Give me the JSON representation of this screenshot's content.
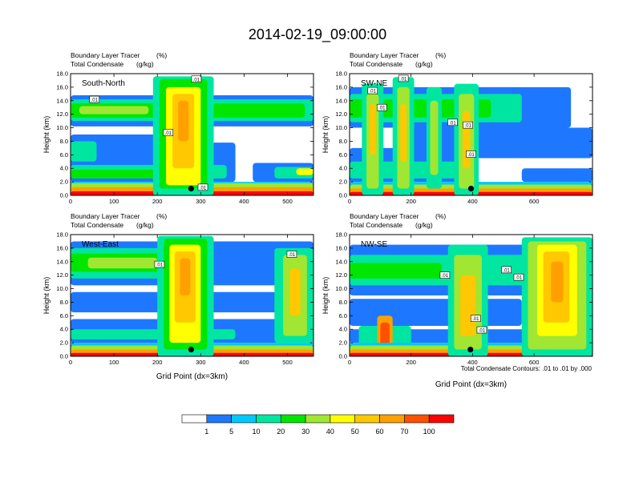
{
  "page": {
    "title": "2014-02-19_09:00:00",
    "footnote": "Total Condensate Contours: .01 to .01 by .000"
  },
  "colorbar": {
    "colors": [
      "#ffffff",
      "#1e78ff",
      "#00c8ff",
      "#00e6a0",
      "#00e600",
      "#a0e632",
      "#ffff00",
      "#ffc800",
      "#ffa000",
      "#ff5000",
      "#ff0000"
    ],
    "labels": [
      "1",
      "5",
      "10",
      "20",
      "30",
      "40",
      "50",
      "60",
      "70",
      "100"
    ]
  },
  "chart_data": [
    {
      "type": "heatmap",
      "panel_label": "South-North",
      "line1_left": "Boundary Layer Tracer",
      "line1_right": "(%)",
      "line2_left": "Total Condensate",
      "line2_right": "(g/kg)",
      "ylabel": "Height (km)",
      "xlabel": "",
      "xlim": [
        0,
        560
      ],
      "ylim": [
        0,
        18
      ],
      "xticks": [
        "0",
        "100",
        "200",
        "300",
        "400",
        "500"
      ],
      "xtick_values": [
        0,
        100,
        200,
        300,
        400,
        500
      ],
      "yticks": [
        "0.0",
        "2.0",
        "4.0",
        "6.0",
        "8.0",
        "10.0",
        "12.0",
        "14.0",
        "16.0",
        "18.0"
      ],
      "ytick_values": [
        0,
        2,
        4,
        6,
        8,
        10,
        12,
        14,
        16,
        18
      ],
      "marker": [
        278,
        1.0
      ],
      "contour_labels": [
        {
          "text": ".01",
          "x": 55,
          "y": 14.2
        },
        {
          "text": ".01",
          "x": 225,
          "y": 9.3
        },
        {
          "text": ".01",
          "x": 305,
          "y": 1.2
        },
        {
          "text": ".01",
          "x": 290,
          "y": 17.2
        }
      ],
      "layers": [
        {
          "level": 1,
          "x": [
            0,
            560
          ],
          "y": [
            10.2,
            14.8
          ]
        },
        {
          "level": 3,
          "x": [
            0,
            560
          ],
          "y": [
            11.0,
            14.2
          ]
        },
        {
          "level": 4,
          "x": [
            0,
            540
          ],
          "y": [
            11.5,
            13.6
          ]
        },
        {
          "level": 5,
          "x": [
            20,
            180
          ],
          "y": [
            12.0,
            13.2
          ]
        },
        {
          "level": 1,
          "x": [
            0,
            380
          ],
          "y": [
            2.0,
            7.8
          ]
        },
        {
          "level": 3,
          "x": [
            0,
            360
          ],
          "y": [
            2.5,
            4.5
          ]
        },
        {
          "level": 4,
          "x": [
            0,
            240
          ],
          "y": [
            2.5,
            3.8
          ]
        },
        {
          "level": 1,
          "x": [
            420,
            560
          ],
          "y": [
            2.0,
            4.8
          ]
        },
        {
          "level": 3,
          "x": [
            470,
            560
          ],
          "y": [
            2.5,
            4.2
          ]
        },
        {
          "level": 6,
          "x": [
            520,
            560
          ],
          "y": [
            3.0,
            4.0
          ]
        },
        {
          "level": 1,
          "x": [
            0,
            220
          ],
          "y": [
            4.5,
            9.0
          ]
        },
        {
          "level": 3,
          "x": [
            0,
            60
          ],
          "y": [
            5.0,
            8.0
          ]
        },
        {
          "level": 2,
          "x": [
            0,
            560
          ],
          "y": [
            0.0,
            2.0
          ]
        },
        {
          "level": 5,
          "x": [
            0,
            560
          ],
          "y": [
            0.4,
            1.8
          ]
        },
        {
          "level": 8,
          "x": [
            0,
            560
          ],
          "y": [
            0.0,
            1.2
          ]
        },
        {
          "level": 10,
          "x": [
            0,
            560
          ],
          "y": [
            0.0,
            0.6
          ]
        },
        {
          "level": 3,
          "x": [
            190,
            330
          ],
          "y": [
            0.0,
            17.6
          ]
        },
        {
          "level": 4,
          "x": [
            205,
            315
          ],
          "y": [
            1.0,
            17.2
          ]
        },
        {
          "level": 6,
          "x": [
            220,
            300
          ],
          "y": [
            1.5,
            16.0
          ]
        },
        {
          "level": 7,
          "x": [
            235,
            285
          ],
          "y": [
            4.0,
            15.0
          ]
        },
        {
          "level": 8,
          "x": [
            248,
            272
          ],
          "y": [
            8.0,
            14.0
          ]
        }
      ]
    },
    {
      "type": "heatmap",
      "panel_label": "SW-NE",
      "line1_left": "Boundary Layer Tracer",
      "line1_right": "(%)",
      "line2_left": "Total Condensate",
      "line2_right": "(g/kg)",
      "ylabel": "Height (km)",
      "xlabel": "",
      "xlim": [
        0,
        790
      ],
      "ylim": [
        0,
        18
      ],
      "xticks": [
        "0",
        "200",
        "400",
        "600"
      ],
      "xtick_values": [
        0,
        200,
        400,
        600
      ],
      "yticks": [
        "0.0",
        "2.0",
        "4.0",
        "6.0",
        "8.0",
        "10.0",
        "12.0",
        "14.0",
        "16.0",
        "18.0"
      ],
      "ytick_values": [
        0,
        2,
        4,
        6,
        8,
        10,
        12,
        14,
        16,
        18
      ],
      "marker": [
        395,
        1.0
      ],
      "contour_labels": [
        {
          "text": ".01",
          "x": 75,
          "y": 15.5
        },
        {
          "text": ".01",
          "x": 105,
          "y": 13.0
        },
        {
          "text": ".01",
          "x": 335,
          "y": 10.8
        },
        {
          "text": ".01",
          "x": 385,
          "y": 10.4
        },
        {
          "text": ".01",
          "x": 395,
          "y": 6.1
        },
        {
          "text": ".01",
          "x": 175,
          "y": 17.3
        }
      ],
      "layers": [
        {
          "level": 1,
          "x": [
            0,
            720
          ],
          "y": [
            10.0,
            16.0
          ]
        },
        {
          "level": 3,
          "x": [
            0,
            560
          ],
          "y": [
            10.8,
            15.0
          ]
        },
        {
          "level": 4,
          "x": [
            0,
            460
          ],
          "y": [
            11.5,
            14.2
          ]
        },
        {
          "level": 1,
          "x": [
            200,
            790
          ],
          "y": [
            5.5,
            10.0
          ]
        },
        {
          "level": 1,
          "x": [
            0,
            400
          ],
          "y": [
            2.0,
            7.0
          ]
        },
        {
          "level": 3,
          "x": [
            0,
            380
          ],
          "y": [
            2.5,
            5.0
          ]
        },
        {
          "level": 1,
          "x": [
            560,
            790
          ],
          "y": [
            2.0,
            4.0
          ]
        },
        {
          "level": 2,
          "x": [
            0,
            790
          ],
          "y": [
            0.0,
            2.0
          ]
        },
        {
          "level": 5,
          "x": [
            0,
            790
          ],
          "y": [
            0.3,
            1.6
          ]
        },
        {
          "level": 8,
          "x": [
            0,
            790
          ],
          "y": [
            0.0,
            1.0
          ]
        },
        {
          "level": 10,
          "x": [
            0,
            790
          ],
          "y": [
            0.0,
            0.5
          ]
        },
        {
          "level": 3,
          "x": [
            40,
            110
          ],
          "y": [
            0.0,
            16.5
          ]
        },
        {
          "level": 5,
          "x": [
            55,
            95
          ],
          "y": [
            1.0,
            15.0
          ]
        },
        {
          "level": 7,
          "x": [
            65,
            85
          ],
          "y": [
            6.0,
            13.5
          ]
        },
        {
          "level": 3,
          "x": [
            140,
            210
          ],
          "y": [
            0.0,
            17.5
          ]
        },
        {
          "level": 5,
          "x": [
            155,
            195
          ],
          "y": [
            1.0,
            16.0
          ]
        },
        {
          "level": 7,
          "x": [
            165,
            185
          ],
          "y": [
            5.0,
            13.5
          ]
        },
        {
          "level": 3,
          "x": [
            250,
            300
          ],
          "y": [
            1.0,
            16.0
          ]
        },
        {
          "level": 5,
          "x": [
            262,
            288
          ],
          "y": [
            3.0,
            14.0
          ]
        },
        {
          "level": 3,
          "x": [
            340,
            420
          ],
          "y": [
            0.0,
            16.5
          ]
        },
        {
          "level": 5,
          "x": [
            355,
            405
          ],
          "y": [
            1.0,
            15.0
          ]
        },
        {
          "level": 7,
          "x": [
            368,
            392
          ],
          "y": [
            4.0,
            12.5
          ]
        }
      ]
    },
    {
      "type": "heatmap",
      "panel_label": "West-East",
      "line1_left": "Boundary Layer Tracer",
      "line1_right": "(%)",
      "line2_left": "Total Condensate",
      "line2_right": "(g/kg)",
      "ylabel": "Height (km)",
      "xlabel": "Grid Point (dx=3km)",
      "xlim": [
        0,
        560
      ],
      "ylim": [
        0,
        18
      ],
      "xticks": [
        "0",
        "100",
        "200",
        "300",
        "400",
        "500"
      ],
      "xtick_values": [
        0,
        100,
        200,
        300,
        400,
        500
      ],
      "yticks": [
        "0.0",
        "2.0",
        "4.0",
        "6.0",
        "8.0",
        "10.0",
        "12.0",
        "14.0",
        "16.0",
        "18.0"
      ],
      "ytick_values": [
        0,
        2,
        4,
        6,
        8,
        10,
        12,
        14,
        16,
        18
      ],
      "marker": [
        278,
        1.0
      ],
      "contour_labels": [
        {
          "text": ".01",
          "x": 205,
          "y": 13.6
        },
        {
          "text": ".01",
          "x": 510,
          "y": 15.1
        }
      ],
      "layers": [
        {
          "level": 1,
          "x": [
            0,
            560
          ],
          "y": [
            10.5,
            17.0
          ]
        },
        {
          "level": 3,
          "x": [
            0,
            260
          ],
          "y": [
            11.5,
            16.0
          ]
        },
        {
          "level": 4,
          "x": [
            0,
            230
          ],
          "y": [
            12.5,
            15.2
          ]
        },
        {
          "level": 5,
          "x": [
            40,
            200
          ],
          "y": [
            13.0,
            14.6
          ]
        },
        {
          "level": 1,
          "x": [
            0,
            560
          ],
          "y": [
            6.5,
            9.5
          ]
        },
        {
          "level": 1,
          "x": [
            0,
            560
          ],
          "y": [
            2.0,
            5.5
          ]
        },
        {
          "level": 3,
          "x": [
            0,
            380
          ],
          "y": [
            2.5,
            4.0
          ]
        },
        {
          "level": 2,
          "x": [
            0,
            560
          ],
          "y": [
            0.0,
            2.0
          ]
        },
        {
          "level": 5,
          "x": [
            0,
            560
          ],
          "y": [
            0.3,
            1.6
          ]
        },
        {
          "level": 8,
          "x": [
            0,
            560
          ],
          "y": [
            0.0,
            1.0
          ]
        },
        {
          "level": 10,
          "x": [
            0,
            560
          ],
          "y": [
            0.0,
            0.5
          ]
        },
        {
          "level": 3,
          "x": [
            200,
            330
          ],
          "y": [
            0.0,
            17.8
          ]
        },
        {
          "level": 4,
          "x": [
            215,
            315
          ],
          "y": [
            1.0,
            17.4
          ]
        },
        {
          "level": 6,
          "x": [
            228,
            300
          ],
          "y": [
            2.0,
            16.5
          ]
        },
        {
          "level": 7,
          "x": [
            240,
            288
          ],
          "y": [
            5.0,
            15.5
          ]
        },
        {
          "level": 8,
          "x": [
            252,
            276
          ],
          "y": [
            9.0,
            14.5
          ]
        },
        {
          "level": 3,
          "x": [
            470,
            560
          ],
          "y": [
            2.0,
            16.0
          ]
        },
        {
          "level": 5,
          "x": [
            490,
            545
          ],
          "y": [
            3.0,
            15.0
          ]
        },
        {
          "level": 7,
          "x": [
            505,
            530
          ],
          "y": [
            6.0,
            13.0
          ]
        }
      ]
    },
    {
      "type": "heatmap",
      "panel_label": "NW-SE",
      "line1_left": "Boundary Layer Tracer",
      "line1_right": "(%)",
      "line2_left": "Total Condensate",
      "line2_right": "(g/kg)",
      "ylabel": "Height (km)",
      "xlabel": "Grid Point (dx=3km)",
      "xlim": [
        0,
        790
      ],
      "ylim": [
        0,
        18
      ],
      "xticks": [
        "0",
        "200",
        "400",
        "600"
      ],
      "xtick_values": [
        0,
        200,
        400,
        600
      ],
      "yticks": [
        "0.0",
        "2.0",
        "4.0",
        "6.0",
        "8.0",
        "10.0",
        "12.0",
        "14.0",
        "16.0",
        "18.0"
      ],
      "ytick_values": [
        0,
        2,
        4,
        6,
        8,
        10,
        12,
        14,
        16,
        18
      ],
      "marker": [
        393,
        1.0
      ],
      "contour_labels": [
        {
          "text": ".01",
          "x": 310,
          "y": 12.0
        },
        {
          "text": ".01",
          "x": 510,
          "y": 12.8
        },
        {
          "text": ".01",
          "x": 550,
          "y": 11.7
        },
        {
          "text": ".01",
          "x": 410,
          "y": 5.6
        },
        {
          "text": ".01",
          "x": 430,
          "y": 3.9
        }
      ],
      "layers": [
        {
          "level": 1,
          "x": [
            0,
            790
          ],
          "y": [
            9.0,
            16.5
          ]
        },
        {
          "level": 3,
          "x": [
            0,
            790
          ],
          "y": [
            10.5,
            15.0
          ]
        },
        {
          "level": 4,
          "x": [
            0,
            300
          ],
          "y": [
            11.5,
            13.8
          ]
        },
        {
          "level": 1,
          "x": [
            0,
            560
          ],
          "y": [
            4.5,
            8.5
          ]
        },
        {
          "level": 1,
          "x": [
            0,
            790
          ],
          "y": [
            2.0,
            4.0
          ]
        },
        {
          "level": 3,
          "x": [
            30,
            200
          ],
          "y": [
            0.0,
            4.5
          ]
        },
        {
          "level": 8,
          "x": [
            90,
            140
          ],
          "y": [
            0.0,
            6.0
          ]
        },
        {
          "level": 9,
          "x": [
            100,
            130
          ],
          "y": [
            1.0,
            5.0
          ]
        },
        {
          "level": 2,
          "x": [
            0,
            790
          ],
          "y": [
            0.0,
            2.0
          ]
        },
        {
          "level": 5,
          "x": [
            0,
            790
          ],
          "y": [
            0.3,
            1.6
          ]
        },
        {
          "level": 8,
          "x": [
            0,
            790
          ],
          "y": [
            0.0,
            1.0
          ]
        },
        {
          "level": 10,
          "x": [
            0,
            790
          ],
          "y": [
            0.0,
            0.5
          ]
        },
        {
          "level": 3,
          "x": [
            320,
            450
          ],
          "y": [
            0.0,
            16.5
          ]
        },
        {
          "level": 5,
          "x": [
            340,
            430
          ],
          "y": [
            1.0,
            15.0
          ]
        },
        {
          "level": 7,
          "x": [
            360,
            410
          ],
          "y": [
            3.0,
            12.0
          ]
        },
        {
          "level": 3,
          "x": [
            560,
            790
          ],
          "y": [
            0.0,
            17.6
          ]
        },
        {
          "level": 5,
          "x": [
            580,
            770
          ],
          "y": [
            1.0,
            17.0
          ]
        },
        {
          "level": 6,
          "x": [
            610,
            740
          ],
          "y": [
            3.0,
            16.5
          ]
        },
        {
          "level": 7,
          "x": [
            630,
            715
          ],
          "y": [
            5.0,
            15.5
          ]
        },
        {
          "level": 8,
          "x": [
            655,
            695
          ],
          "y": [
            8.0,
            14.0
          ]
        }
      ]
    }
  ]
}
